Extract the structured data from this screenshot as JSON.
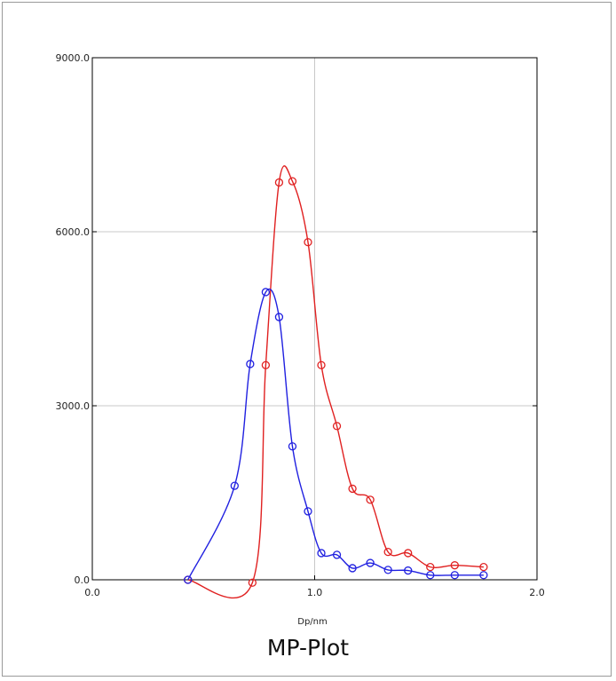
{
  "chart_data": {
    "type": "line",
    "title": "MP-Plot",
    "xlabel": "Dp/nm",
    "ylabel": "",
    "xlim": [
      0.0,
      2.0
    ],
    "ylim": [
      0.0,
      9000.0
    ],
    "x_ticks": [
      "0.0",
      "1.0",
      "2.0"
    ],
    "y_ticks": [
      "0.0",
      "3000.0",
      "6000.0",
      "9000.0"
    ],
    "grid": true,
    "series": [
      {
        "color": "#e02020",
        "x": [
          0.43,
          0.72,
          0.78,
          0.84,
          0.9,
          0.97,
          1.03,
          1.1,
          1.17,
          1.25,
          1.33,
          1.42,
          1.52,
          1.63,
          1.76
        ],
        "y": [
          0,
          -50,
          3700,
          6850,
          6870,
          5820,
          3700,
          2650,
          1570,
          1380,
          480,
          460,
          220,
          250,
          220
        ]
      },
      {
        "color": "#2020e0",
        "x": [
          0.43,
          0.64,
          0.71,
          0.78,
          0.84,
          0.9,
          0.97,
          1.03,
          1.1,
          1.17,
          1.25,
          1.33,
          1.42,
          1.52,
          1.63,
          1.76
        ],
        "y": [
          0,
          1620,
          3720,
          4960,
          4530,
          2300,
          1180,
          460,
          430,
          200,
          290,
          170,
          160,
          80,
          80,
          80
        ]
      }
    ]
  }
}
